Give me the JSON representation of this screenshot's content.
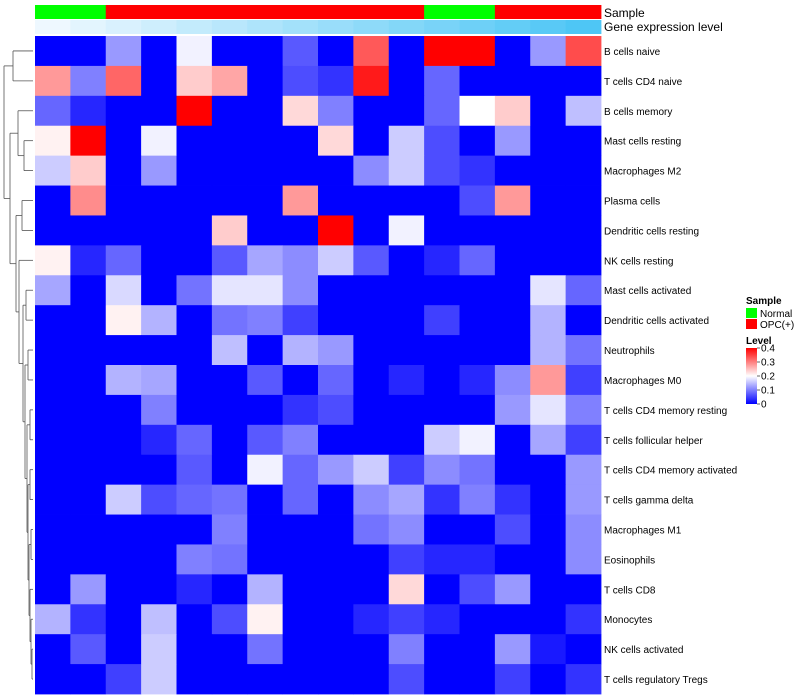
{
  "chart_data": {
    "type": "heatmap",
    "title": "",
    "annotation_tracks": [
      {
        "label": "Sample",
        "values": [
          "Normal",
          "Normal",
          "OPC(+)",
          "OPC(+)",
          "OPC(+)",
          "OPC(+)",
          "OPC(+)",
          "OPC(+)",
          "OPC(+)",
          "OPC(+)",
          "OPC(+)",
          "Normal",
          "Normal",
          "OPC(+)",
          "OPC(+)",
          "OPC(+)"
        ]
      },
      {
        "label": "Gene expression level",
        "values": [
          0.0,
          0.03,
          0.06,
          0.09,
          0.12,
          0.15,
          0.18,
          0.21,
          0.24,
          0.27,
          0.3,
          0.33,
          0.36,
          0.39,
          0.42,
          0.45
        ]
      }
    ],
    "rows": [
      "B cells naive",
      "T cells CD4 naive",
      "B cells memory",
      "Mast cells resting",
      "Macrophages M2",
      "Plasma cells",
      "Dendritic cells resting",
      "NK cells resting",
      "Mast cells activated",
      "Dendritic cells activated",
      "Neutrophils",
      "Macrophages M0",
      "T cells CD4 memory resting",
      "T cells follicular helper",
      "T cells CD4 memory activated",
      "T cells gamma delta",
      "Macrophages M1",
      "Eosinophils",
      "T cells CD8",
      "Monocytes",
      "NK cells activated",
      "T cells regulatory  Tregs"
    ],
    "values": [
      [
        0,
        0,
        0.12,
        0,
        0.19,
        0,
        0,
        0.07,
        0,
        0.33,
        0,
        0.4,
        0.4,
        0,
        0.12,
        0.34
      ],
      [
        0.28,
        0.1,
        0.32,
        0,
        0.24,
        0.27,
        0,
        0.06,
        0.04,
        0.38,
        0,
        0.08,
        0,
        0,
        0,
        0
      ],
      [
        0.08,
        0.03,
        0,
        0,
        0.4,
        0,
        0,
        0.23,
        0.1,
        0,
        0,
        0.08,
        0.2,
        0.24,
        0,
        0.15
      ],
      [
        0.21,
        0.4,
        0,
        0.19,
        0,
        0,
        0,
        0,
        0.23,
        0,
        0.16,
        0.06,
        0,
        0.12,
        0,
        0
      ],
      [
        0.16,
        0.24,
        0,
        0.12,
        0,
        0,
        0,
        0,
        0,
        0.11,
        0.16,
        0.06,
        0.04,
        0,
        0,
        0
      ],
      [
        0,
        0.29,
        0,
        0,
        0,
        0,
        0,
        0.28,
        0,
        0,
        0,
        0,
        0.06,
        0.28,
        0,
        0
      ],
      [
        0,
        0,
        0,
        0,
        0,
        0.24,
        0,
        0,
        0.4,
        0,
        0.19,
        0,
        0,
        0,
        0,
        0
      ],
      [
        0.21,
        0.03,
        0.08,
        0,
        0,
        0.07,
        0.13,
        0.11,
        0.16,
        0.07,
        0,
        0.03,
        0.08,
        0,
        0,
        0
      ],
      [
        0.13,
        0,
        0.17,
        0,
        0.09,
        0.18,
        0.18,
        0.11,
        0,
        0,
        0,
        0,
        0,
        0,
        0.18,
        0.08
      ],
      [
        0,
        0,
        0.21,
        0.14,
        0,
        0.09,
        0.1,
        0.05,
        0,
        0,
        0,
        0.05,
        0,
        0,
        0.14,
        0
      ],
      [
        0,
        0,
        0,
        0,
        0,
        0.15,
        0,
        0.14,
        0.12,
        0,
        0,
        0,
        0,
        0,
        0.14,
        0.09
      ],
      [
        0,
        0,
        0.14,
        0.13,
        0,
        0,
        0.07,
        0,
        0.08,
        0,
        0.03,
        0,
        0.03,
        0.11,
        0.28,
        0.05
      ],
      [
        0,
        0,
        0,
        0.1,
        0,
        0,
        0,
        0.04,
        0.06,
        0,
        0,
        0,
        0,
        0.12,
        0.18,
        0.1
      ],
      [
        0,
        0,
        0,
        0.03,
        0.08,
        0,
        0.07,
        0.1,
        0,
        0,
        0,
        0.16,
        0.19,
        0,
        0.13,
        0.05
      ],
      [
        0,
        0,
        0,
        0,
        0.07,
        0,
        0.19,
        0.08,
        0.12,
        0.16,
        0.05,
        0.11,
        0.09,
        0,
        0,
        0.12
      ],
      [
        0,
        0,
        0.16,
        0.06,
        0.08,
        0.09,
        0,
        0.08,
        0,
        0.11,
        0.13,
        0.04,
        0.1,
        0.04,
        0,
        0.12
      ],
      [
        0,
        0,
        0,
        0,
        0,
        0.1,
        0,
        0,
        0,
        0.09,
        0.11,
        0,
        0,
        0.06,
        0,
        0.11
      ],
      [
        0,
        0,
        0,
        0,
        0.1,
        0.09,
        0,
        0,
        0,
        0,
        0.05,
        0.03,
        0.03,
        0,
        0,
        0.11
      ],
      [
        0,
        0.12,
        0,
        0,
        0.03,
        0,
        0.14,
        0,
        0,
        0,
        0.23,
        0,
        0.06,
        0.12,
        0,
        0
      ],
      [
        0.14,
        0.04,
        0,
        0.15,
        0,
        0.06,
        0.21,
        0,
        0,
        0.03,
        0.05,
        0.03,
        0,
        0,
        0,
        0.04
      ],
      [
        0,
        0.07,
        0,
        0.16,
        0,
        0,
        0.09,
        0,
        0,
        0,
        0.1,
        0,
        0,
        0.12,
        0.02,
        0
      ],
      [
        0,
        0,
        0.05,
        0.16,
        0,
        0,
        0,
        0,
        0,
        0,
        0.06,
        0,
        0,
        0.05,
        0,
        0.04
      ]
    ],
    "color_scale": {
      "min": 0,
      "max": 0.4,
      "low": "#0000ff",
      "mid": "#ffffff",
      "high": "#ff0000",
      "mid_value": 0.2
    },
    "track_colors": {
      "Normal": "#00ff00",
      "OPC(+)": "#ff0000",
      "expression_low": "#eef8ff",
      "expression_high": "#4ec6f5"
    },
    "legend": {
      "placement": "right",
      "sample_title": "Sample",
      "sample_items": [
        {
          "label": "Normal",
          "color": "#00ff00"
        },
        {
          "label": "OPC(+)",
          "color": "#ff0000"
        }
      ],
      "level_title": "Level",
      "level_ticks": [
        "0.4",
        "0.3",
        "0.2",
        "0.1",
        "0"
      ]
    },
    "row_dendrogram": true
  }
}
